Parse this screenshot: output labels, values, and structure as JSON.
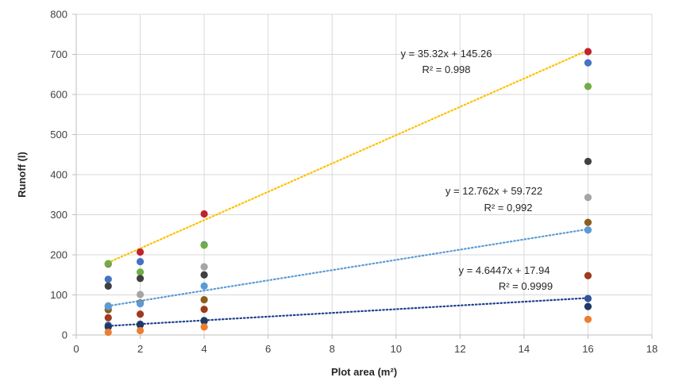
{
  "chart_data": {
    "type": "scatter",
    "title": "",
    "xlabel": "Plot area (m²)",
    "ylabel": "Runoff (l)",
    "xlim": [
      0,
      18
    ],
    "ylim": [
      0,
      800
    ],
    "x_ticks": [
      "0",
      "2",
      "4",
      "6",
      "8",
      "10",
      "12",
      "14",
      "16",
      "18"
    ],
    "y_ticks": [
      "0",
      "100",
      "200",
      "300",
      "400",
      "500",
      "600",
      "700",
      "800"
    ],
    "grid": true,
    "legend": "none",
    "series": [
      {
        "color": "#c0232b",
        "x": [
          1,
          2,
          4,
          16
        ],
        "y": [
          177,
          207,
          302,
          707
        ]
      },
      {
        "color": "#4472c4",
        "x": [
          1,
          2,
          4,
          16
        ],
        "y": [
          139,
          183,
          225,
          679
        ]
      },
      {
        "color": "#70ad47",
        "x": [
          1,
          2,
          4,
          16
        ],
        "y": [
          178,
          157,
          224,
          620
        ]
      },
      {
        "color": "#404040",
        "x": [
          1,
          2,
          4,
          16
        ],
        "y": [
          122,
          141,
          150,
          433
        ]
      },
      {
        "color": "#a5a5a5",
        "x": [
          1,
          2,
          4,
          16
        ],
        "y": [
          73,
          101,
          170,
          343
        ]
      },
      {
        "color": "#8b5e1a",
        "x": [
          1,
          2,
          4,
          16
        ],
        "y": [
          63,
          80,
          88,
          281
        ]
      },
      {
        "color": "#5b9bd5",
        "x": [
          1,
          2,
          4,
          16
        ],
        "y": [
          71,
          78,
          122,
          262
        ]
      },
      {
        "color": "#9e3a1f",
        "x": [
          1,
          2,
          4,
          16
        ],
        "y": [
          43,
          52,
          64,
          148
        ]
      },
      {
        "color": "#2f5597",
        "x": [
          1,
          2,
          4,
          16
        ],
        "y": [
          24,
          27,
          34,
          91
        ]
      },
      {
        "color": "#1f3864",
        "x": [
          1,
          2,
          4,
          16
        ],
        "y": [
          20,
          25,
          36,
          71
        ]
      },
      {
        "color": "#ed7d31",
        "x": [
          1,
          2,
          4,
          16
        ],
        "y": [
          7,
          11,
          20,
          39
        ]
      }
    ],
    "trendlines": [
      {
        "color": "#ffc000",
        "slope": 35.32,
        "intercept": 145.26,
        "x_range": [
          1,
          16
        ],
        "equation": "y = 35.32x + 145.26",
        "r2": "R² = 0.998"
      },
      {
        "color": "#5b9bd5",
        "slope": 12.762,
        "intercept": 59.722,
        "x_range": [
          1,
          16
        ],
        "equation": "y = 12.762x + 59.722",
        "r2": "R² = 0,992"
      },
      {
        "color": "#1f3f8f",
        "slope": 4.6447,
        "intercept": 17.94,
        "x_range": [
          1,
          16
        ],
        "equation": "y = 4.6447x + 17.94",
        "r2": "R² = 0.9999"
      }
    ]
  }
}
